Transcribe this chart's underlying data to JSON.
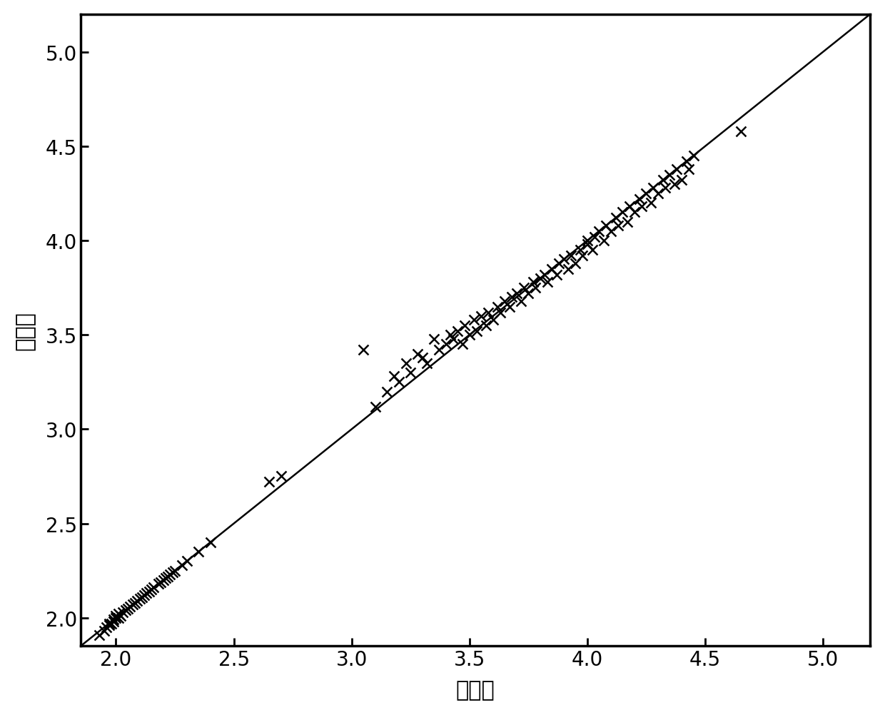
{
  "xlabel": "实验值",
  "ylabel": "预测值",
  "xlim": [
    1.85,
    5.2
  ],
  "ylim": [
    1.85,
    5.2
  ],
  "xticks": [
    2.0,
    2.5,
    3.0,
    3.5,
    4.0,
    4.5,
    5.0
  ],
  "yticks": [
    2.0,
    2.5,
    3.0,
    3.5,
    4.0,
    4.5,
    5.0
  ],
  "line_color": "#000000",
  "marker_color": "#000000",
  "marker": "x",
  "marker_size": 10,
  "line_width": 1.8,
  "background_color": "#ffffff",
  "x_points": [
    1.93,
    1.95,
    1.96,
    1.97,
    1.97,
    1.98,
    1.99,
    1.99,
    2.0,
    2.0,
    2.01,
    2.01,
    2.02,
    2.03,
    2.04,
    2.05,
    2.06,
    2.07,
    2.08,
    2.09,
    2.1,
    2.11,
    2.12,
    2.13,
    2.14,
    2.15,
    2.16,
    2.18,
    2.19,
    2.2,
    2.21,
    2.22,
    2.23,
    2.24,
    2.25,
    2.28,
    2.3,
    2.35,
    2.4,
    2.65,
    2.7,
    3.05,
    3.1,
    3.15,
    3.18,
    3.2,
    3.23,
    3.25,
    3.28,
    3.3,
    3.32,
    3.35,
    3.37,
    3.4,
    3.42,
    3.43,
    3.45,
    3.47,
    3.48,
    3.5,
    3.52,
    3.53,
    3.55,
    3.57,
    3.58,
    3.6,
    3.62,
    3.63,
    3.65,
    3.67,
    3.68,
    3.7,
    3.72,
    3.73,
    3.75,
    3.77,
    3.78,
    3.8,
    3.82,
    3.83,
    3.85,
    3.87,
    3.88,
    3.9,
    3.92,
    3.93,
    3.95,
    3.97,
    3.98,
    4.0,
    4.0,
    4.02,
    4.03,
    4.05,
    4.07,
    4.08,
    4.1,
    4.12,
    4.13,
    4.15,
    4.17,
    4.18,
    4.2,
    4.22,
    4.23,
    4.25,
    4.27,
    4.28,
    4.3,
    4.32,
    4.33,
    4.35,
    4.37,
    4.38,
    4.4,
    4.42,
    4.43,
    4.45,
    4.65
  ],
  "y_points": [
    1.91,
    1.93,
    1.95,
    1.96,
    1.97,
    1.97,
    1.98,
    1.99,
    2.0,
    2.01,
    2.0,
    2.02,
    2.01,
    2.03,
    2.04,
    2.05,
    2.06,
    2.07,
    2.08,
    2.09,
    2.1,
    2.11,
    2.12,
    2.13,
    2.14,
    2.15,
    2.16,
    2.18,
    2.19,
    2.2,
    2.21,
    2.22,
    2.23,
    2.24,
    2.25,
    2.28,
    2.3,
    2.35,
    2.4,
    2.72,
    2.75,
    3.42,
    3.12,
    3.2,
    3.28,
    3.25,
    3.35,
    3.3,
    3.4,
    3.38,
    3.35,
    3.48,
    3.42,
    3.45,
    3.5,
    3.48,
    3.52,
    3.45,
    3.55,
    3.5,
    3.58,
    3.52,
    3.6,
    3.55,
    3.62,
    3.58,
    3.65,
    3.62,
    3.68,
    3.65,
    3.7,
    3.72,
    3.68,
    3.75,
    3.72,
    3.78,
    3.75,
    3.8,
    3.82,
    3.78,
    3.85,
    3.82,
    3.88,
    3.9,
    3.85,
    3.92,
    3.88,
    3.95,
    3.92,
    3.98,
    4.0,
    3.95,
    4.02,
    4.05,
    4.0,
    4.08,
    4.05,
    4.12,
    4.08,
    4.15,
    4.1,
    4.18,
    4.15,
    4.22,
    4.18,
    4.25,
    4.2,
    4.28,
    4.25,
    4.32,
    4.28,
    4.35,
    4.3,
    4.38,
    4.32,
    4.42,
    4.38,
    4.45,
    4.58
  ]
}
